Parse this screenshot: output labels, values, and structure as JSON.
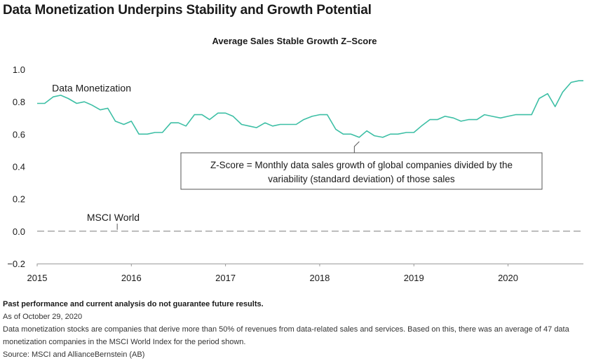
{
  "title": "Data Monetization Underpins Stability and Growth Potential",
  "chart_data": {
    "type": "line",
    "title": "Average Sales Stable Growth Z–Score",
    "xlabel": "",
    "ylabel": "",
    "xlim": [
      2015,
      2020.8
    ],
    "ylim": [
      -0.2,
      1.0
    ],
    "x_ticks": [
      "2015",
      "2016",
      "2017",
      "2018",
      "2019",
      "2020"
    ],
    "y_ticks": [
      "1.0",
      "0.8",
      "0.6",
      "0.4",
      "0.2",
      "0.0",
      "−0.2"
    ],
    "grid": false,
    "series": [
      {
        "name": "Data Monetization",
        "color": "#3dbfa5",
        "style": "solid",
        "x": [
          2015.0,
          2015.08,
          2015.17,
          2015.25,
          2015.33,
          2015.42,
          2015.5,
          2015.58,
          2015.67,
          2015.75,
          2015.83,
          2015.92,
          2016.0,
          2016.08,
          2016.17,
          2016.25,
          2016.33,
          2016.42,
          2016.5,
          2016.58,
          2016.67,
          2016.75,
          2016.83,
          2016.92,
          2017.0,
          2017.08,
          2017.17,
          2017.25,
          2017.33,
          2017.42,
          2017.5,
          2017.58,
          2017.67,
          2017.75,
          2017.83,
          2017.92,
          2018.0,
          2018.08,
          2018.17,
          2018.25,
          2018.33,
          2018.42,
          2018.5,
          2018.58,
          2018.67,
          2018.75,
          2018.83,
          2018.92,
          2019.0,
          2019.08,
          2019.17,
          2019.25,
          2019.33,
          2019.42,
          2019.5,
          2019.58,
          2019.67,
          2019.75,
          2019.83,
          2019.92,
          2020.0,
          2020.08,
          2020.17,
          2020.25,
          2020.33,
          2020.42,
          2020.5,
          2020.58,
          2020.67,
          2020.75,
          2020.8
        ],
        "y": [
          0.79,
          0.79,
          0.83,
          0.84,
          0.82,
          0.79,
          0.8,
          0.78,
          0.75,
          0.76,
          0.68,
          0.66,
          0.68,
          0.6,
          0.6,
          0.61,
          0.61,
          0.67,
          0.67,
          0.65,
          0.72,
          0.72,
          0.69,
          0.73,
          0.73,
          0.71,
          0.66,
          0.65,
          0.64,
          0.67,
          0.65,
          0.66,
          0.66,
          0.66,
          0.69,
          0.71,
          0.72,
          0.72,
          0.63,
          0.6,
          0.6,
          0.58,
          0.62,
          0.59,
          0.58,
          0.6,
          0.6,
          0.61,
          0.61,
          0.65,
          0.69,
          0.69,
          0.71,
          0.7,
          0.68,
          0.69,
          0.69,
          0.72,
          0.71,
          0.7,
          0.71,
          0.72,
          0.72,
          0.72,
          0.82,
          0.85,
          0.77,
          0.86,
          0.92,
          0.93,
          0.93
        ]
      },
      {
        "name": "MSCI World",
        "color": "#8a8a8a",
        "style": "dashed",
        "x": [
          2015.0,
          2020.8
        ],
        "y": [
          0.0,
          0.0
        ]
      }
    ],
    "annotations": [
      {
        "text": "Data Monetization",
        "x": 2015.15,
        "y": 0.88
      },
      {
        "text": "MSCI World",
        "x": 2015.55,
        "y": 0.09,
        "leader_to": [
          2015.85,
          0.0
        ]
      },
      {
        "text": "Z-Score = Monthly data sales growth of global companies divided by the",
        "box": true,
        "line": 1
      },
      {
        "text": "variability (standard deviation) of those sales",
        "box": true,
        "line": 2,
        "pointer_to": [
          2018.42,
          0.56
        ]
      }
    ]
  },
  "footer": {
    "disclaimer": "Past performance and current analysis do not guarantee future results.",
    "as_of": "As of October 29, 2020",
    "note": "Data monetization stocks are companies that derive more than 50% of revenues from data-related sales and services. Based on this, there was an average of 47 data monetization companies in the MSCI World Index for the period shown.",
    "source": "Source: MSCI and AllianceBernstein (AB)"
  }
}
